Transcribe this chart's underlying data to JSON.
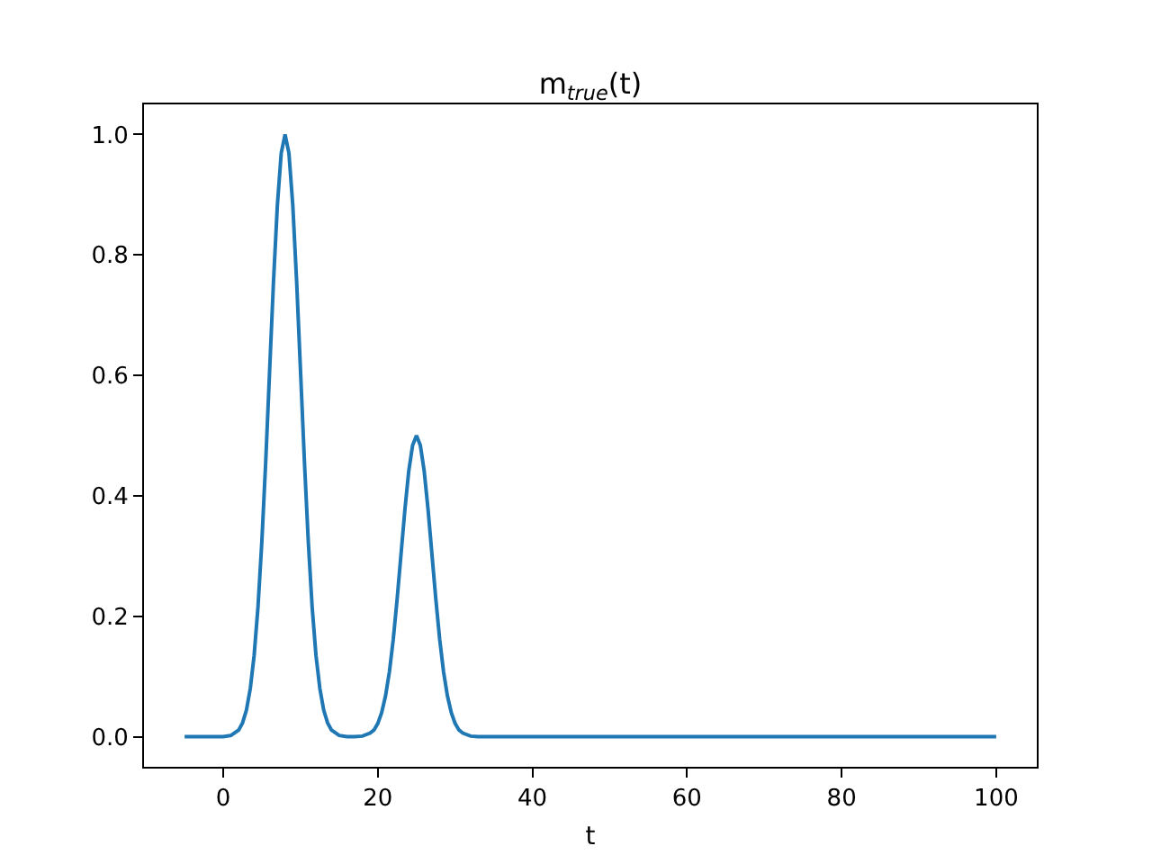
{
  "chart_data": {
    "type": "line",
    "title": "m$_{true}$(t)",
    "xlabel": "t",
    "x": [
      -5,
      0,
      1,
      2,
      2.5,
      3,
      3.5,
      4,
      4.5,
      5,
      5.5,
      6,
      6.5,
      7,
      7.5,
      8,
      8.5,
      9,
      9.5,
      10,
      10.5,
      11,
      11.5,
      12,
      12.5,
      13,
      13.5,
      14,
      15,
      16,
      17,
      18,
      19,
      19.5,
      20,
      20.5,
      21,
      21.5,
      22,
      22.5,
      23,
      23.5,
      24,
      24.5,
      25,
      25.5,
      26,
      26.5,
      27,
      27.5,
      28,
      28.5,
      29,
      29.5,
      30,
      30.5,
      31,
      32,
      33,
      40,
      100
    ],
    "series": [
      {
        "color": "#1f77b4",
        "values": [
          0,
          0,
          0.002,
          0.011,
          0.023,
          0.044,
          0.08,
          0.135,
          0.216,
          0.325,
          0.458,
          0.607,
          0.755,
          0.882,
          0.969,
          1.0,
          0.969,
          0.882,
          0.755,
          0.607,
          0.458,
          0.325,
          0.216,
          0.135,
          0.08,
          0.044,
          0.023,
          0.011,
          0.002,
          0,
          0,
          0.001,
          0.006,
          0.011,
          0.022,
          0.04,
          0.068,
          0.108,
          0.162,
          0.229,
          0.303,
          0.377,
          0.441,
          0.484,
          0.5,
          0.484,
          0.441,
          0.377,
          0.303,
          0.229,
          0.162,
          0.108,
          0.068,
          0.04,
          0.022,
          0.011,
          0.006,
          0.001,
          0,
          0,
          0
        ]
      }
    ],
    "xlim": [
      -10.25,
      105.25
    ],
    "xticks": [
      0,
      20,
      40,
      60,
      80,
      100
    ],
    "ylim": [
      -0.05,
      1.05
    ],
    "yticks": [
      {
        "value": 0,
        "label": "0.0"
      },
      {
        "value": 0.2,
        "label": "0.2"
      },
      {
        "value": 0.4,
        "label": "0.4"
      },
      {
        "value": 0.6,
        "label": "0.6"
      },
      {
        "value": 0.8,
        "label": "0.8"
      },
      {
        "value": 1.0,
        "label": "1.0"
      }
    ],
    "grid": false,
    "marker": "none",
    "line_style": "solid"
  }
}
